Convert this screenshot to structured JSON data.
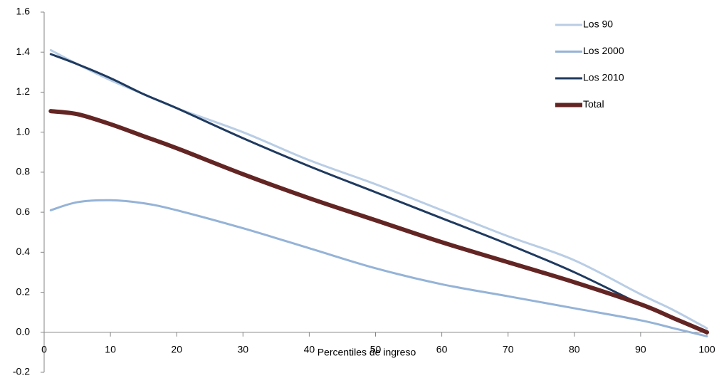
{
  "chart_data": {
    "type": "line",
    "x_label": "Percentiles de ingreso",
    "x": [
      1,
      5,
      10,
      15,
      20,
      30,
      40,
      50,
      60,
      70,
      80,
      90,
      95,
      100
    ],
    "series": [
      {
        "name": "Los 90",
        "color": "#b9cde5",
        "width": 3,
        "values": [
          1.41,
          1.34,
          1.26,
          1.19,
          1.12,
          1.0,
          0.86,
          0.74,
          0.61,
          0.48,
          0.36,
          0.19,
          0.11,
          0.02
        ]
      },
      {
        "name": "Los 2000",
        "color": "#95b3d7",
        "width": 3,
        "values": [
          0.61,
          0.65,
          0.66,
          0.645,
          0.61,
          0.52,
          0.42,
          0.32,
          0.24,
          0.18,
          0.12,
          0.06,
          0.02,
          -0.02
        ]
      },
      {
        "name": "Los 2010",
        "color": "#1f3a5f",
        "width": 3,
        "values": [
          1.39,
          1.34,
          1.27,
          1.19,
          1.12,
          0.97,
          0.83,
          0.7,
          0.57,
          0.44,
          0.3,
          0.14,
          0.07,
          0.0
        ]
      },
      {
        "name": "Total",
        "color": "#632523",
        "width": 6,
        "values": [
          1.105,
          1.09,
          1.04,
          0.98,
          0.92,
          0.79,
          0.67,
          0.56,
          0.45,
          0.35,
          0.25,
          0.14,
          0.07,
          0.0
        ]
      }
    ],
    "xlim": [
      0,
      100
    ],
    "xticks": [
      0,
      10,
      20,
      30,
      40,
      50,
      60,
      70,
      80,
      90,
      100
    ],
    "ylim": [
      -0.2,
      1.6
    ],
    "yticks": [
      {
        "value": -0.2,
        "label": "-0.2"
      },
      {
        "value": 0,
        "label": "0.0"
      },
      0.2,
      0.4,
      0.6,
      0.8,
      {
        "value": 1,
        "label": "1.0"
      },
      1.2,
      1.4,
      1.6
    ],
    "legend": "upper right",
    "grid": false
  }
}
